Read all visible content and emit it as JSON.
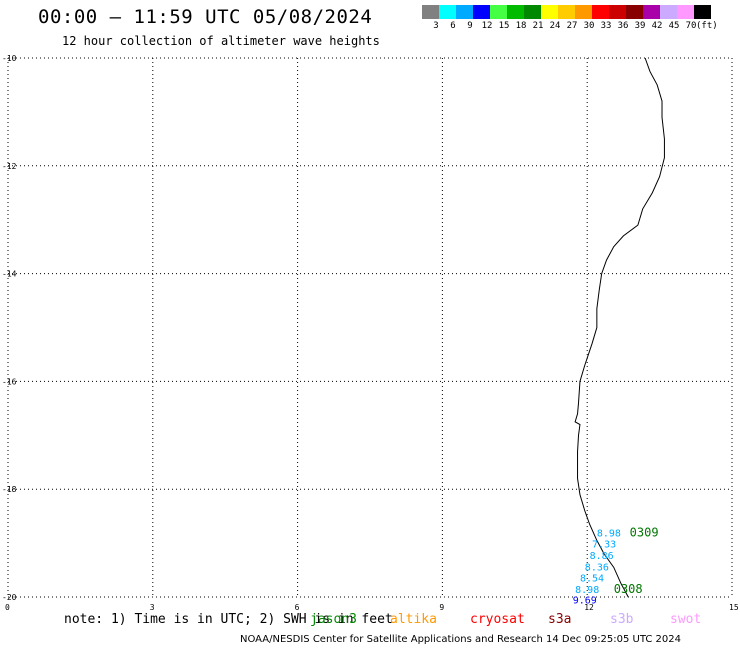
{
  "header": {
    "title": "00:00 – 11:59 UTC 05/08/2024",
    "subtitle": "12 hour collection of altimeter wave heights"
  },
  "legend": {
    "unit": "(ft)",
    "bins": [
      {
        "label": "3",
        "color": "#808080"
      },
      {
        "label": "6",
        "color": "#00ffff"
      },
      {
        "label": "9",
        "color": "#00aaff"
      },
      {
        "label": "12",
        "color": "#0000ff"
      },
      {
        "label": "15",
        "color": "#44ff44"
      },
      {
        "label": "18",
        "color": "#00bb00"
      },
      {
        "label": "21",
        "color": "#008800"
      },
      {
        "label": "24",
        "color": "#ffff00"
      },
      {
        "label": "27",
        "color": "#ffcc00"
      },
      {
        "label": "30",
        "color": "#ff9900"
      },
      {
        "label": "33",
        "color": "#ff0000"
      },
      {
        "label": "36",
        "color": "#cc0000"
      },
      {
        "label": "39",
        "color": "#880000"
      },
      {
        "label": "42",
        "color": "#aa00aa"
      },
      {
        "label": "45",
        "color": "#ccaaff"
      },
      {
        "label": "70",
        "color": "#ff99ff"
      },
      {
        "label": "",
        "color": "#000000"
      }
    ]
  },
  "map": {
    "lon_range": [
      0,
      15
    ],
    "lat_range": [
      -20,
      -10
    ],
    "x_ticks": [
      "0",
      "3",
      "6",
      "9",
      "12",
      "15"
    ],
    "y_ticks": [
      "-10",
      "-12",
      "-14",
      "-16",
      "-18",
      "-20"
    ],
    "grid": "dotted"
  },
  "chart_data": {
    "type": "scatter",
    "observations": [
      {
        "lon": 12.45,
        "lat": -18.8,
        "value": "8.98",
        "color": "#00aaff"
      },
      {
        "lon": 12.35,
        "lat": -19.01,
        "value": "7.33",
        "color": "#00aaff"
      },
      {
        "lon": 12.3,
        "lat": -19.22,
        "value": "8.86",
        "color": "#00aaff"
      },
      {
        "lon": 12.2,
        "lat": -19.43,
        "value": "8.36",
        "color": "#00aaff"
      },
      {
        "lon": 12.1,
        "lat": -19.64,
        "value": "8.54",
        "color": "#00aaff"
      },
      {
        "lon": 12.0,
        "lat": -19.85,
        "value": "8.98",
        "color": "#00aaff"
      },
      {
        "lon": 11.95,
        "lat": -20.05,
        "value": "9.69",
        "color": "#0000ff"
      }
    ],
    "pass_labels": [
      {
        "lon": 12.88,
        "lat": -18.8,
        "text": "0309"
      },
      {
        "lon": 12.55,
        "lat": -19.85,
        "text": "0308"
      }
    ]
  },
  "footnote": "note: 1) Time is in UTC; 2) SWH is in feet",
  "missions": [
    {
      "name": "jason3",
      "color": "#008800"
    },
    {
      "name": "altika",
      "color": "#ff9900"
    },
    {
      "name": "cryosat",
      "color": "#ff0000"
    },
    {
      "name": "s3a",
      "color": "#880000"
    },
    {
      "name": "s3b",
      "color": "#ccaaff"
    },
    {
      "name": "swot",
      "color": "#ff99ff"
    }
  ],
  "credit": "NOAA/NESDIS Center for Satellite Applications and Research    14 Dec 09:25:05 UTC 2024"
}
